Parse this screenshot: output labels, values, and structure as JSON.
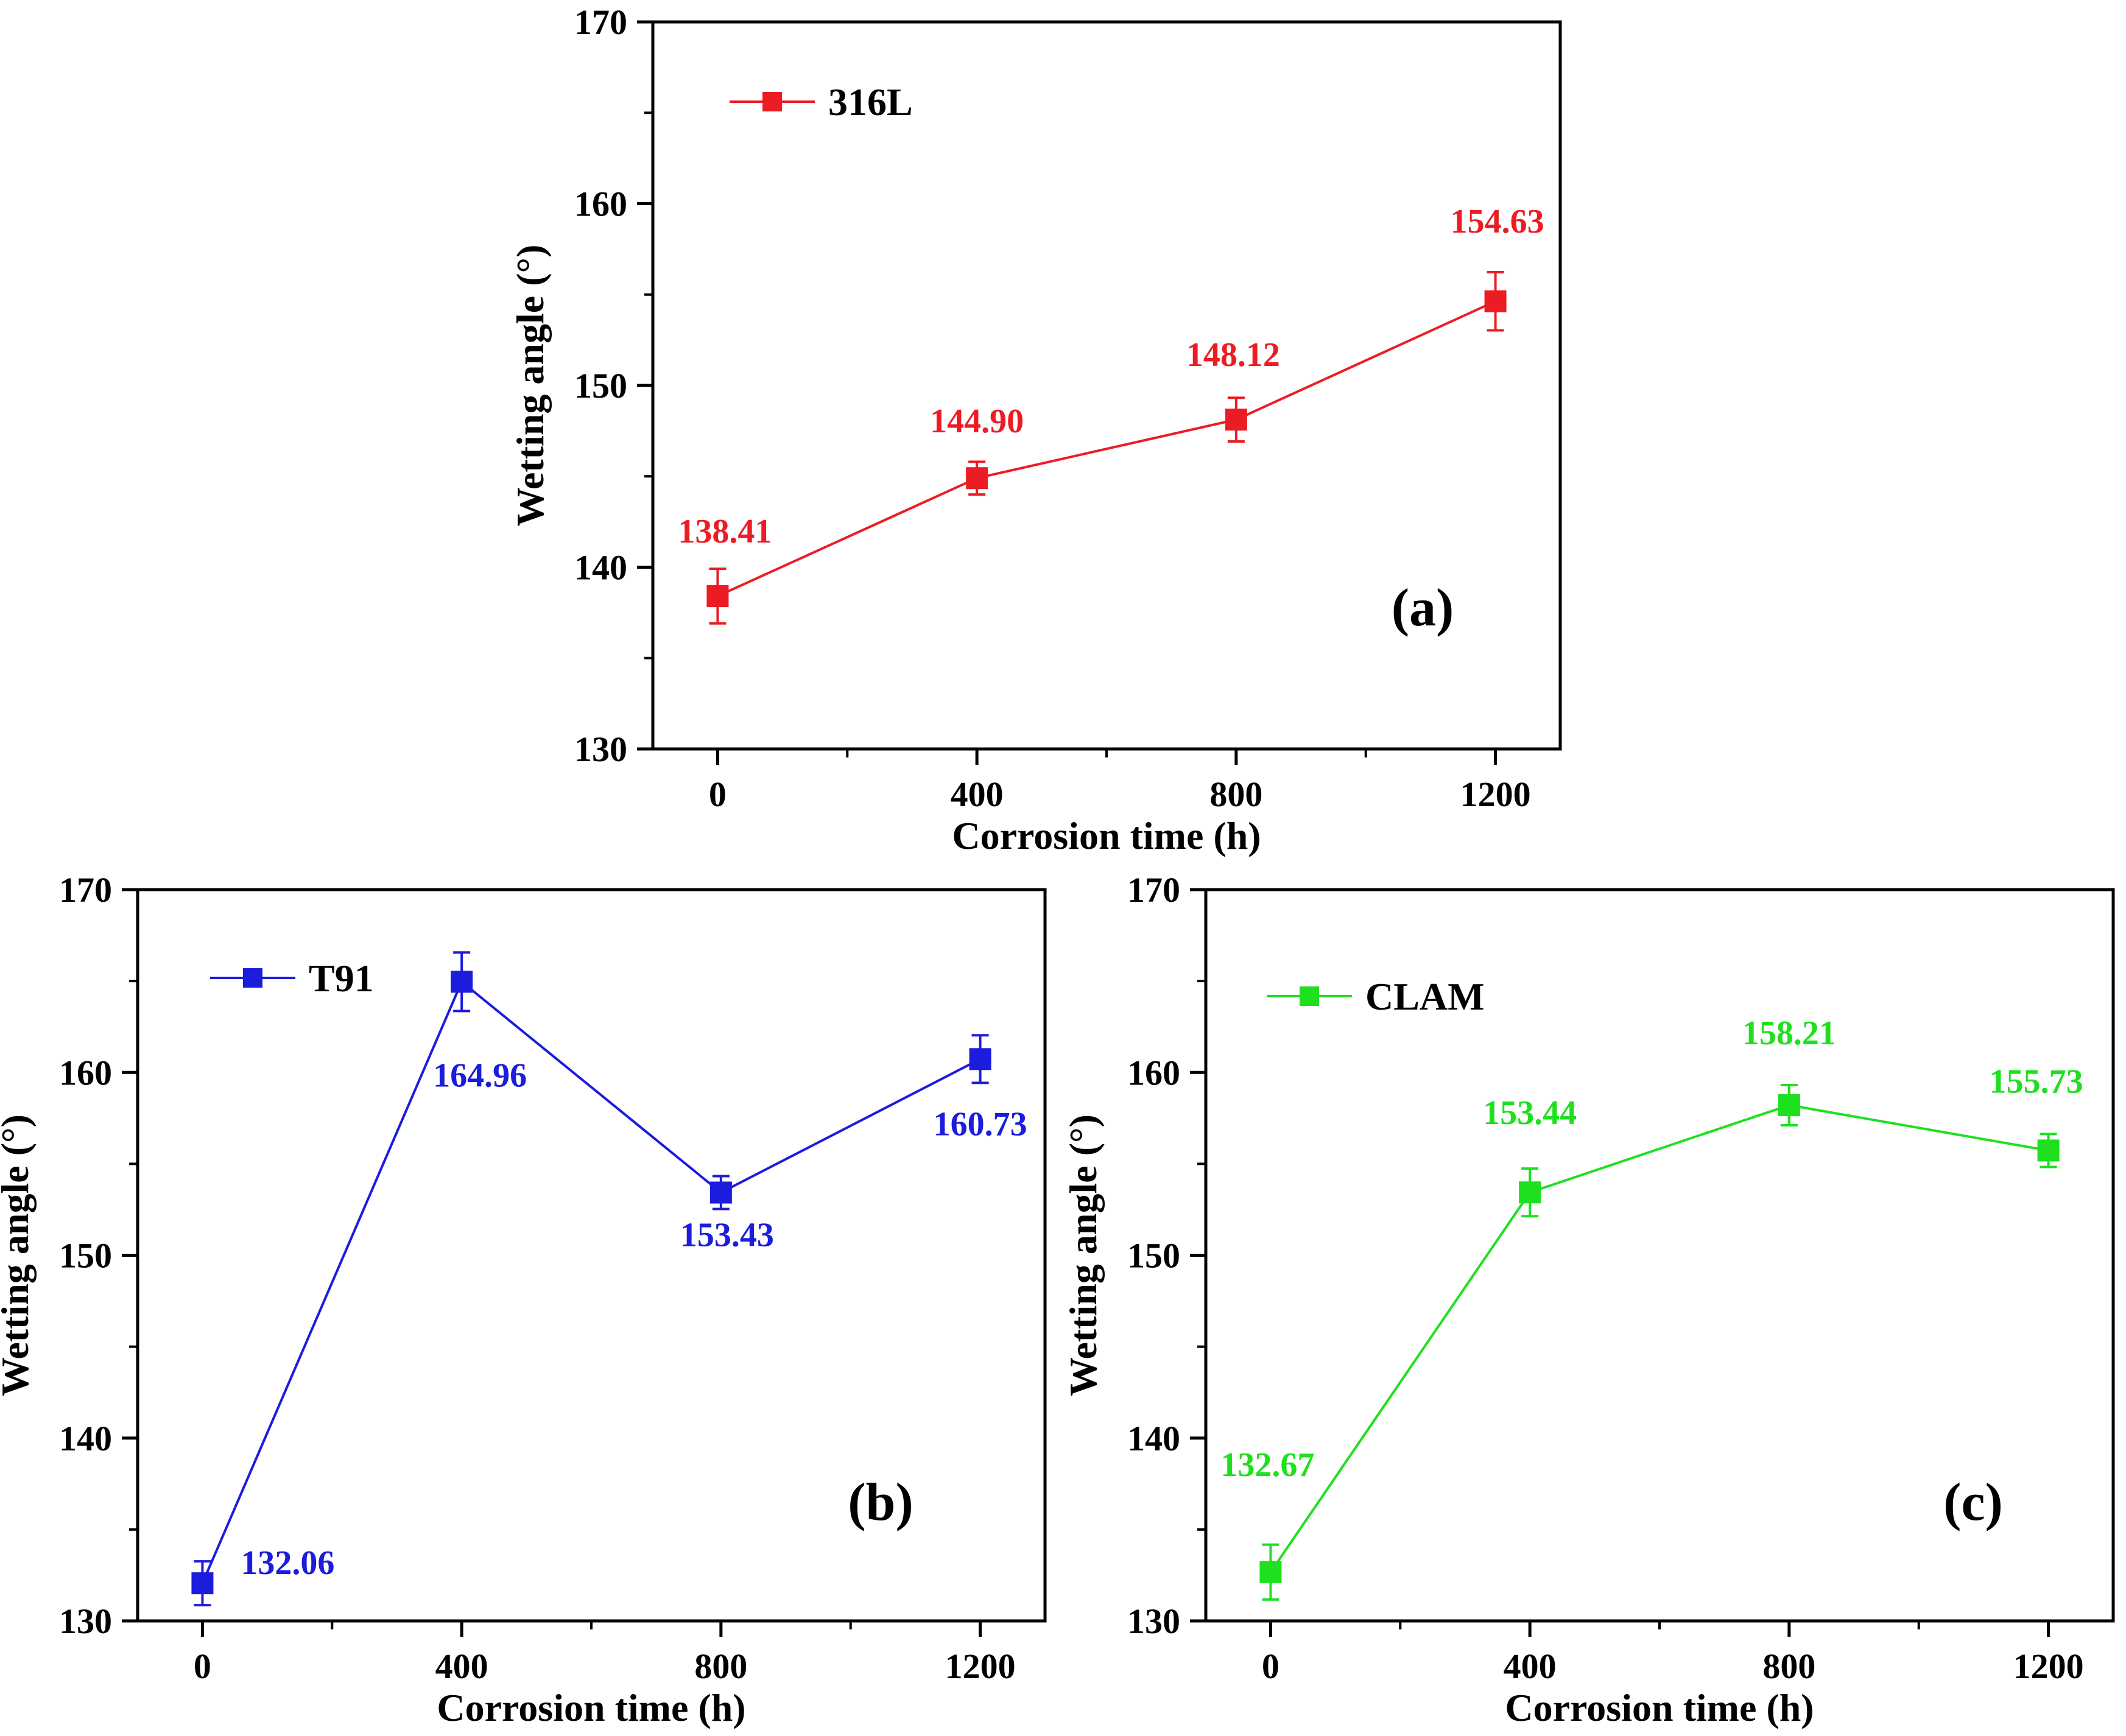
{
  "chart_data": [
    {
      "type": "line",
      "panel_label": "(a)",
      "legend": "316L",
      "color": "#ec1c24",
      "x": [
        0,
        400,
        800,
        1200
      ],
      "values": [
        138.41,
        144.9,
        148.12,
        154.63
      ],
      "value_labels": [
        "138.41",
        "144.90",
        "148.12",
        "154.63"
      ],
      "error": [
        1.5,
        0.9,
        1.2,
        1.6
      ],
      "xlabel": "Corrosion time (h)",
      "ylabel": "Wetting angle (°)",
      "xticks": [
        0,
        400,
        800,
        1200
      ],
      "xtick_labels": [
        "0",
        "400",
        "800",
        "1200"
      ],
      "yticks": [
        130,
        140,
        150,
        160,
        170
      ],
      "ytick_labels": [
        "130",
        "140",
        "150",
        "160",
        "170"
      ],
      "xlim": [
        -100,
        1300
      ],
      "ylim": [
        130,
        170
      ],
      "legend_position": "top-left"
    },
    {
      "type": "line",
      "panel_label": "(b)",
      "legend": "T91",
      "color": "#1c1cdc",
      "x": [
        0,
        400,
        800,
        1200
      ],
      "values": [
        132.06,
        164.96,
        153.43,
        160.73
      ],
      "value_labels": [
        "132.06",
        "164.96",
        "153.43",
        "160.73"
      ],
      "error": [
        1.2,
        1.6,
        0.9,
        1.3
      ],
      "xlabel": "Corrosion time (h)",
      "ylabel": "Wetting angle (°)",
      "xticks": [
        0,
        400,
        800,
        1200
      ],
      "xtick_labels": [
        "0",
        "400",
        "800",
        "1200"
      ],
      "yticks": [
        130,
        140,
        150,
        160,
        170
      ],
      "ytick_labels": [
        "130",
        "140",
        "150",
        "160",
        "170"
      ],
      "xlim": [
        -100,
        1300
      ],
      "ylim": [
        130,
        170
      ],
      "legend_position": "top-left"
    },
    {
      "type": "line",
      "panel_label": "(c)",
      "legend": "CLAM",
      "color": "#1ee01e",
      "x": [
        0,
        400,
        800,
        1200
      ],
      "values": [
        132.67,
        153.44,
        158.21,
        155.73
      ],
      "value_labels": [
        "132.67",
        "153.44",
        "158.21",
        "155.73"
      ],
      "error": [
        1.5,
        1.3,
        1.1,
        0.9
      ],
      "xlabel": "Corrosion time (h)",
      "ylabel": "Wetting angle (°)",
      "xticks": [
        0,
        400,
        800,
        1200
      ],
      "xtick_labels": [
        "0",
        "400",
        "800",
        "1200"
      ],
      "yticks": [
        130,
        140,
        150,
        160,
        170
      ],
      "ytick_labels": [
        "130",
        "140",
        "150",
        "160",
        "170"
      ],
      "xlim": [
        -100,
        1300
      ],
      "ylim": [
        130,
        170
      ],
      "legend_position": "top-left"
    }
  ]
}
